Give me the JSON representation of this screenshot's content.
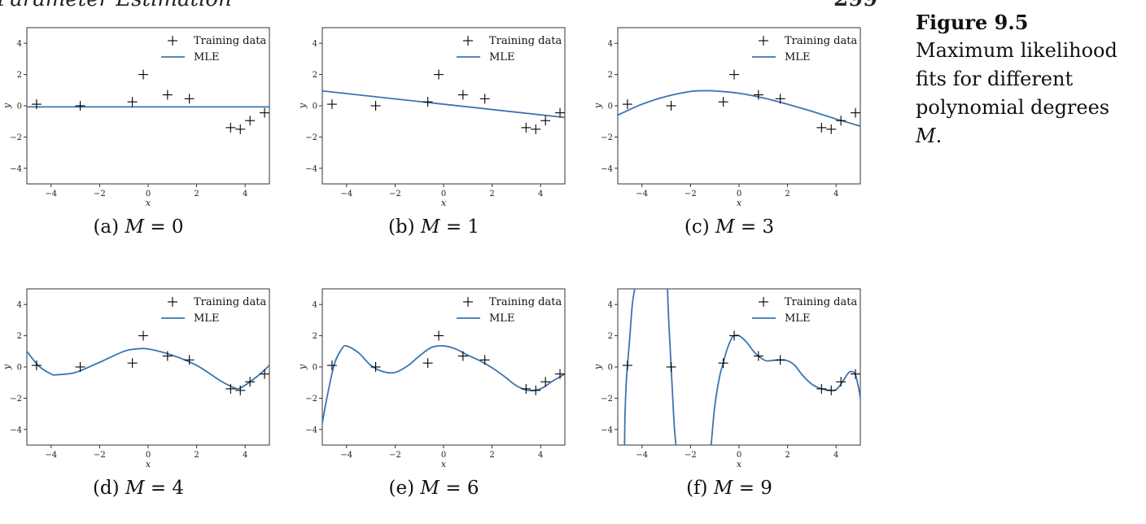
{
  "page": {
    "header_title": "Parameter Estimation",
    "page_number": "299"
  },
  "figure_caption": {
    "label": "Figure 9.5",
    "text": "Maximum likelihood fits for different polynomial degrees",
    "symbol": "M",
    "end": "."
  },
  "chart_data": {
    "type": "line",
    "shared": {
      "xlabel": "x",
      "ylabel": "y",
      "xlim": [
        -5,
        5
      ],
      "ylim": [
        -5,
        5
      ],
      "xticks": [
        -4,
        -2,
        0,
        2,
        4
      ],
      "yticks": [
        -4,
        -2,
        0,
        2,
        4
      ],
      "legend": [
        "Training data",
        "MLE"
      ],
      "legend_position": "top-right",
      "training_data": {
        "x": [
          -4.6,
          -2.8,
          -0.65,
          -0.2,
          0.8,
          1.7,
          3.4,
          3.8,
          4.2,
          4.8
        ],
        "y": [
          0.1,
          0.0,
          0.25,
          2.0,
          0.7,
          0.45,
          -1.4,
          -1.5,
          -0.95,
          -0.45
        ]
      },
      "colors": {
        "mle": "#3b75af",
        "data": "#000000",
        "axes": "#333333"
      }
    },
    "panels": [
      {
        "caption_prefix": "(a)",
        "caption_symbol": "M",
        "caption_value": "= 0",
        "degree": 0,
        "mle": {
          "x": [
            -5,
            5
          ],
          "y": [
            -0.07,
            -0.07
          ]
        }
      },
      {
        "caption_prefix": "(b)",
        "caption_symbol": "M",
        "caption_value": "= 1",
        "degree": 1,
        "mle": {
          "x": [
            -5,
            5
          ],
          "y": [
            0.95,
            -0.75
          ]
        }
      },
      {
        "caption_prefix": "(c)",
        "caption_symbol": "M",
        "caption_value": "= 3",
        "degree": 3,
        "mle": {
          "x": [
            -5,
            -4,
            -3,
            -2,
            -1.5,
            -1,
            0,
            1,
            2,
            3,
            4,
            5
          ],
          "y": [
            -0.6,
            0.1,
            0.6,
            0.92,
            0.96,
            0.95,
            0.8,
            0.5,
            0.1,
            -0.35,
            -0.85,
            -1.3
          ]
        }
      },
      {
        "caption_prefix": "(d)",
        "caption_symbol": "M",
        "caption_value": "= 4",
        "degree": 4,
        "mle": {
          "x": [
            -5,
            -4.5,
            -4,
            -3.8,
            -3,
            -2,
            -1,
            -0.5,
            0,
            1,
            2,
            3,
            3.5,
            3.8,
            4.5,
            5
          ],
          "y": [
            1.0,
            0.05,
            -0.45,
            -0.5,
            -0.35,
            0.3,
            1.0,
            1.15,
            1.15,
            0.75,
            0.1,
            -0.9,
            -1.3,
            -1.35,
            -0.6,
            0.1
          ]
        }
      },
      {
        "caption_prefix": "(e)",
        "caption_symbol": "M",
        "caption_value": "= 6",
        "degree": 6,
        "mle": {
          "x": [
            -5,
            -4.8,
            -4.5,
            -4.2,
            -4,
            -3.5,
            -3,
            -2.5,
            -2,
            -1.5,
            -1,
            -0.5,
            0,
            0.5,
            1,
            1.5,
            2,
            2.5,
            3,
            3.5,
            4,
            4.5,
            5
          ],
          "y": [
            -3.6,
            -1.9,
            0.2,
            1.15,
            1.35,
            0.9,
            0.1,
            -0.3,
            -0.35,
            0.05,
            0.7,
            1.25,
            1.35,
            1.15,
            0.75,
            0.4,
            -0.05,
            -0.6,
            -1.2,
            -1.5,
            -1.4,
            -0.9,
            -0.45
          ]
        }
      },
      {
        "caption_prefix": "(f)",
        "caption_symbol": "M",
        "caption_value": "= 9",
        "degree": 9,
        "mle": {
          "segments": [
            {
              "x": [
                -4.72,
                -4.7,
                -4.65,
                -4.6,
                -4.5,
                -4.4,
                -4.3
              ],
              "y": [
                -5,
                -3.0,
                -1.0,
                0.1,
                2.0,
                4.0,
                5
              ]
            },
            {
              "x": [
                -2.95,
                -2.9,
                -2.85,
                -2.8,
                -2.75,
                -2.7,
                -2.65,
                -2.6
              ],
              "y": [
                5,
                3.0,
                1.5,
                0.0,
                -1.5,
                -3.0,
                -4.2,
                -5
              ]
            },
            {
              "x": [
                -1.15,
                -1.0,
                -0.8,
                -0.65,
                -0.5,
                -0.3,
                -0.2,
                0,
                0.3,
                0.6,
                0.8,
                1.1,
                1.4,
                1.7,
                2.0,
                2.3,
                2.6,
                3.0,
                3.4,
                3.8,
                4.0,
                4.2,
                4.5,
                4.65,
                4.8,
                4.95,
                5.0
              ],
              "y": [
                -5,
                -2.5,
                -0.6,
                0.25,
                1.1,
                1.85,
                2.0,
                2.0,
                1.6,
                1.0,
                0.7,
                0.4,
                0.42,
                0.45,
                0.4,
                0.1,
                -0.5,
                -1.1,
                -1.4,
                -1.5,
                -1.45,
                -1.1,
                -0.4,
                -0.3,
                -0.5,
                -1.5,
                -2.0
              ]
            }
          ]
        }
      }
    ]
  }
}
